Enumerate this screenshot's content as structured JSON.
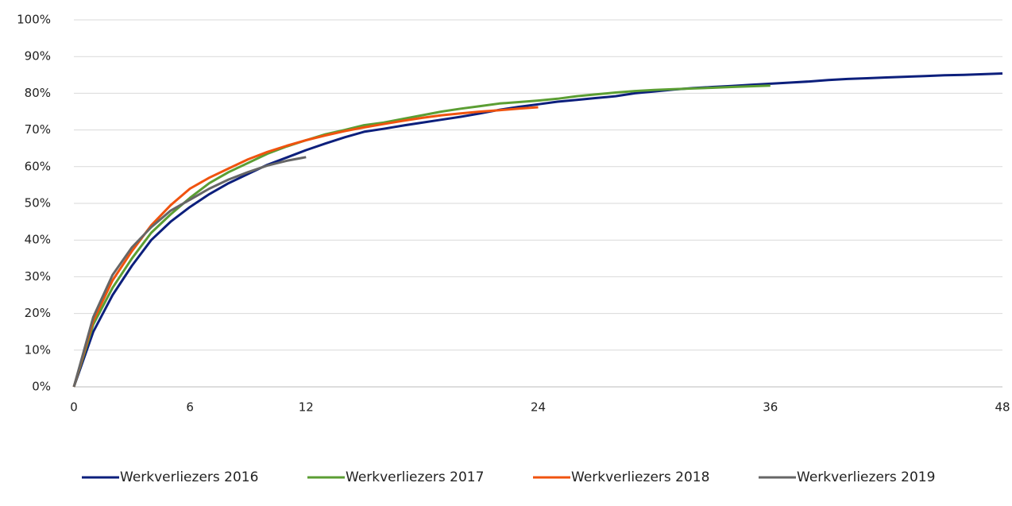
{
  "chart_data": {
    "type": "line",
    "xlim": [
      0,
      48
    ],
    "xticks": [
      0,
      6,
      12,
      24,
      36,
      48
    ],
    "ylim": [
      0,
      100
    ],
    "yticks": [
      {
        "value": 0,
        "label": "0%"
      },
      {
        "value": 10,
        "label": "10%"
      },
      {
        "value": 20,
        "label": "20%"
      },
      {
        "value": 30,
        "label": "30%"
      },
      {
        "value": 40,
        "label": "40%"
      },
      {
        "value": 50,
        "label": "50%"
      },
      {
        "value": 60,
        "label": "60%"
      },
      {
        "value": 70,
        "label": "70%"
      },
      {
        "value": 80,
        "label": "80%"
      },
      {
        "value": 90,
        "label": "90%"
      },
      {
        "value": 100,
        "label": "100%"
      }
    ],
    "grid": true,
    "legend": "bottom",
    "series": [
      {
        "name": "Werkverliezers 2016",
        "color": "#0c1f7c",
        "x": [
          0,
          1,
          2,
          3,
          4,
          5,
          6,
          7,
          8,
          9,
          10,
          11,
          12,
          13,
          14,
          15,
          16,
          17,
          18,
          19,
          20,
          21,
          22,
          23,
          24,
          25,
          26,
          27,
          28,
          29,
          30,
          31,
          32,
          33,
          34,
          35,
          36,
          37,
          38,
          39,
          40,
          41,
          42,
          43,
          44,
          45,
          46,
          47,
          48
        ],
        "values": [
          0,
          15,
          25,
          33,
          40,
          45,
          49,
          52.5,
          55.5,
          58,
          60.5,
          62.5,
          64.5,
          66.3,
          68,
          69.5,
          70.3,
          71.2,
          72,
          72.8,
          73.6,
          74.5,
          75.5,
          76.3,
          77,
          77.7,
          78.2,
          78.7,
          79.2,
          80,
          80.5,
          81,
          81.4,
          81.7,
          82,
          82.3,
          82.6,
          82.9,
          83.2,
          83.6,
          83.9,
          84.1,
          84.3,
          84.5,
          84.7,
          84.9,
          85,
          85.2,
          85.4
        ]
      },
      {
        "name": "Werkverliezers 2017",
        "color": "#5b9e33",
        "x": [
          0,
          1,
          2,
          3,
          4,
          5,
          6,
          7,
          8,
          9,
          10,
          11,
          12,
          13,
          14,
          15,
          16,
          17,
          18,
          19,
          20,
          21,
          22,
          23,
          24,
          25,
          26,
          27,
          28,
          29,
          30,
          31,
          32,
          33,
          34,
          35,
          36
        ],
        "values": [
          0,
          17,
          27,
          35,
          42,
          47,
          51.5,
          55.5,
          58.5,
          61,
          63.5,
          65.5,
          67.2,
          68.8,
          70,
          71.3,
          72,
          73,
          74,
          75,
          75.8,
          76.5,
          77.2,
          77.6,
          78,
          78.5,
          79.2,
          79.7,
          80.2,
          80.6,
          80.9,
          81.1,
          81.3,
          81.5,
          81.7,
          81.9,
          82.1
        ]
      },
      {
        "name": "Werkverliezers 2018",
        "color": "#f0530f",
        "x": [
          0,
          1,
          2,
          3,
          4,
          5,
          6,
          7,
          8,
          9,
          10,
          11,
          12,
          13,
          14,
          15,
          16,
          17,
          18,
          19,
          20,
          21,
          22,
          23,
          24
        ],
        "values": [
          0,
          18,
          29,
          37,
          44,
          49.5,
          54,
          57,
          59.5,
          62,
          64,
          65.7,
          67.2,
          68.5,
          69.7,
          70.7,
          71.6,
          72.5,
          73.3,
          74,
          74.5,
          75,
          75.4,
          75.8,
          76.2
        ]
      },
      {
        "name": "Werkverliezers 2019",
        "color": "#666666",
        "x": [
          0,
          1,
          2,
          3,
          4,
          5,
          6,
          7,
          8,
          9,
          10,
          11,
          12
        ],
        "values": [
          0,
          19,
          30.5,
          38,
          43.5,
          48,
          51,
          54,
          56.5,
          58.5,
          60.3,
          61.6,
          62.6
        ]
      }
    ]
  }
}
